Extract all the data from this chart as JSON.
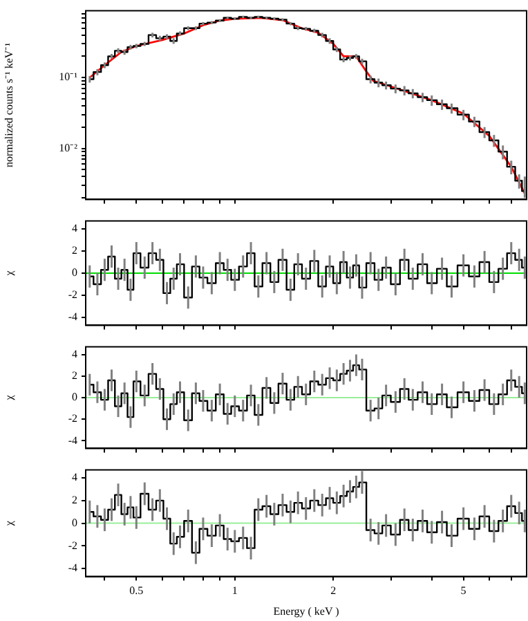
{
  "chart_data": [
    {
      "type": "step",
      "ylabel": "normalized counts s⁻¹ keV⁻¹",
      "log": "xy",
      "xlim": [
        0.35,
        7.8
      ],
      "ylim": [
        0.0019,
        0.88
      ],
      "tick_labels": "y",
      "grid": false,
      "legend": false,
      "marker": "none",
      "xticks": [
        {
          "value": 0.4,
          "label": null
        },
        0.5,
        {
          "value": 0.6,
          "label": null
        },
        {
          "value": 0.7,
          "label": null
        },
        {
          "value": 0.8,
          "label": null
        },
        {
          "value": 0.9,
          "label": null
        },
        1,
        2,
        {
          "value": 3,
          "label": null
        },
        {
          "value": 4,
          "label": null
        },
        5,
        {
          "value": 6,
          "label": null
        },
        {
          "value": 7,
          "label": null
        }
      ],
      "yticks": [
        {
          "value": 0.002,
          "label": null
        },
        {
          "value": 0.003,
          "label": null
        },
        {
          "value": 0.004,
          "label": null
        },
        {
          "value": 0.005,
          "label": null
        },
        {
          "value": 0.006,
          "label": null
        },
        {
          "value": 0.007,
          "label": null
        },
        {
          "value": 0.008,
          "label": null
        },
        {
          "value": 0.009,
          "label": null
        },
        {
          "value": 0.01,
          "label": "10⁻²"
        },
        {
          "value": 0.02,
          "label": null
        },
        {
          "value": 0.03,
          "label": null
        },
        {
          "value": 0.04,
          "label": null
        },
        {
          "value": 0.05,
          "label": null
        },
        {
          "value": 0.06,
          "label": null
        },
        {
          "value": 0.07,
          "label": null
        },
        {
          "value": 0.08,
          "label": null
        },
        {
          "value": 0.09,
          "label": null
        },
        {
          "value": 0.1,
          "label": "10⁻¹"
        },
        {
          "value": 0.2,
          "label": null
        },
        {
          "value": 0.3,
          "label": null
        },
        {
          "value": 0.4,
          "label": null
        },
        {
          "value": 0.5,
          "label": null
        },
        {
          "value": 0.6,
          "label": null
        },
        {
          "value": 0.7,
          "label": null
        },
        {
          "value": 0.8,
          "label": null
        }
      ],
      "x": [
        0.36,
        0.38,
        0.4,
        0.42,
        0.44,
        0.46,
        0.48,
        0.5,
        0.53,
        0.56,
        0.59,
        0.62,
        0.65,
        0.68,
        0.72,
        0.76,
        0.8,
        0.85,
        0.9,
        0.95,
        1,
        1.06,
        1.12,
        1.18,
        1.25,
        1.32,
        1.4,
        1.48,
        1.56,
        1.65,
        1.75,
        1.85,
        1.95,
        2.05,
        2.15,
        2.25,
        2.35,
        2.45,
        2.6,
        2.75,
        2.9,
        3.1,
        3.3,
        3.5,
        3.75,
        4,
        4.3,
        4.6,
        5,
        5.4,
        5.8,
        6.2,
        6.6,
        7,
        7.4,
        7.7
      ],
      "series": [
        {
          "color": "#000000",
          "values": [
            0.095,
            0.12,
            0.15,
            0.2,
            0.24,
            0.23,
            0.27,
            0.28,
            0.3,
            0.4,
            0.36,
            0.38,
            0.33,
            0.42,
            0.5,
            0.5,
            0.58,
            0.6,
            0.64,
            0.7,
            0.68,
            0.72,
            0.7,
            0.72,
            0.7,
            0.68,
            0.66,
            0.58,
            0.5,
            0.49,
            0.46,
            0.4,
            0.33,
            0.25,
            0.18,
            0.19,
            0.2,
            0.17,
            0.095,
            0.085,
            0.078,
            0.07,
            0.066,
            0.06,
            0.053,
            0.048,
            0.042,
            0.037,
            0.03,
            0.024,
            0.017,
            0.013,
            0.009,
            0.0055,
            0.0035,
            0.0025
          ],
          "errors": [
            0.01,
            0.012,
            0.014,
            0.016,
            0.02,
            0.02,
            0.02,
            0.02,
            0.02,
            0.03,
            0.03,
            0.03,
            0.03,
            0.03,
            0.03,
            0.03,
            0.03,
            0.03,
            0.03,
            0.03,
            0.03,
            0.03,
            0.03,
            0.03,
            0.03,
            0.03,
            0.03,
            0.03,
            0.03,
            0.03,
            0.03,
            0.03,
            0.03,
            0.02,
            0.015,
            0.015,
            0.015,
            0.015,
            0.012,
            0.012,
            0.01,
            0.01,
            0.01,
            0.009,
            0.008,
            0.008,
            0.007,
            0.006,
            0.005,
            0.004,
            0.003,
            0.0025,
            0.002,
            0.0012,
            0.0008,
            [
              0.002,
              0.004
            ]
          ]
        },
        {
          "type": "line",
          "color": "#ff0000",
          "x": [
            0.36,
            0.4,
            0.45,
            0.5,
            0.6,
            0.7,
            0.8,
            0.9,
            1,
            1.2,
            1.4,
            1.6,
            1.8,
            2,
            2.15,
            2.35,
            2.5,
            2.65,
            3,
            4,
            5,
            6,
            7,
            7.7
          ],
          "values": [
            0.1,
            0.15,
            0.23,
            0.28,
            0.34,
            0.42,
            0.55,
            0.64,
            0.68,
            0.7,
            0.65,
            0.5,
            0.43,
            0.3,
            0.2,
            0.2,
            0.13,
            0.09,
            0.075,
            0.048,
            0.031,
            0.015,
            0.0055,
            0.0023
          ]
        }
      ]
    },
    {
      "type": "step",
      "ylabel": "χ",
      "log": "x",
      "xlim": [
        0.35,
        7.8
      ],
      "ylim": [
        -4.7,
        4.7
      ],
      "tick_labels": "y",
      "grid": false,
      "legend": false,
      "marker": "none",
      "xticks": [
        {
          "value": 0.4,
          "label": null
        },
        0.5,
        {
          "value": 0.6,
          "label": null
        },
        {
          "value": 0.7,
          "label": null
        },
        {
          "value": 0.8,
          "label": null
        },
        {
          "value": 0.9,
          "label": null
        },
        1,
        2,
        {
          "value": 3,
          "label": null
        },
        {
          "value": 4,
          "label": null
        },
        5,
        {
          "value": 6,
          "label": null
        },
        {
          "value": 7,
          "label": null
        }
      ],
      "yticks": [
        -4,
        -2,
        0,
        2,
        4
      ],
      "ref_lines": [
        {
          "axis": "y",
          "value": 0,
          "color": "#00dd00"
        }
      ],
      "x": [
        0.36,
        0.38,
        0.4,
        0.42,
        0.44,
        0.46,
        0.48,
        0.5,
        0.53,
        0.56,
        0.59,
        0.62,
        0.65,
        0.68,
        0.72,
        0.76,
        0.8,
        0.85,
        0.9,
        0.95,
        1,
        1.06,
        1.12,
        1.18,
        1.25,
        1.32,
        1.4,
        1.48,
        1.56,
        1.65,
        1.75,
        1.85,
        1.95,
        2.05,
        2.15,
        2.25,
        2.35,
        2.45,
        2.6,
        2.75,
        2.9,
        3.1,
        3.3,
        3.5,
        3.75,
        4,
        4.3,
        4.6,
        5,
        5.4,
        5.8,
        6.2,
        6.6,
        7,
        7.4,
        7.7
      ],
      "series": [
        {
          "color": "#000000",
          "values": [
            -0.3,
            -1,
            0.3,
            1.5,
            -0.5,
            0.3,
            -1.5,
            1.8,
            0.5,
            1.8,
            1.2,
            -1.8,
            -0.5,
            0.8,
            -2.2,
            0.6,
            -0.4,
            -0.9,
            0.9,
            0.3,
            -0.6,
            0.6,
            1.8,
            -1.2,
            0.9,
            -0.8,
            1.2,
            -1.5,
            0.8,
            -0.5,
            1.1,
            -1.2,
            0.6,
            -0.9,
            1.0,
            -0.4,
            0.7,
            -1.3,
            0.9,
            -0.6,
            0.5,
            -1.0,
            1.2,
            -0.5,
            0.8,
            -0.9,
            0.4,
            -1.2,
            0.7,
            -0.3,
            1.0,
            -0.8,
            0.4,
            1.8,
            1.2,
            0.5
          ],
          "errors": [
            1,
            1,
            1,
            1,
            1,
            1,
            1,
            1,
            1,
            1,
            1,
            1,
            1,
            1,
            1,
            1,
            1,
            1,
            1,
            1,
            1,
            1,
            1,
            1,
            1,
            1,
            1,
            1,
            1,
            1,
            1,
            1,
            1,
            1,
            1,
            1,
            1,
            1,
            1,
            1,
            1,
            1,
            1,
            1,
            1,
            1,
            1,
            1,
            1,
            1,
            1,
            1,
            1,
            1,
            1,
            1
          ]
        }
      ]
    },
    {
      "type": "step",
      "ylabel": "χ",
      "log": "x",
      "xlim": [
        0.35,
        7.8
      ],
      "ylim": [
        -4.7,
        4.7
      ],
      "tick_labels": "y",
      "grid": false,
      "legend": false,
      "marker": "none",
      "xticks": [
        {
          "value": 0.4,
          "label": null
        },
        0.5,
        {
          "value": 0.6,
          "label": null
        },
        {
          "value": 0.7,
          "label": null
        },
        {
          "value": 0.8,
          "label": null
        },
        {
          "value": 0.9,
          "label": null
        },
        1,
        2,
        {
          "value": 3,
          "label": null
        },
        {
          "value": 4,
          "label": null
        },
        5,
        {
          "value": 6,
          "label": null
        },
        {
          "value": 7,
          "label": null
        }
      ],
      "yticks": [
        -4,
        -2,
        0,
        2,
        4
      ],
      "ref_lines": [
        {
          "axis": "y",
          "value": 0,
          "color": "#99ee99"
        }
      ],
      "x": [
        0.36,
        0.38,
        0.4,
        0.42,
        0.44,
        0.46,
        0.48,
        0.5,
        0.53,
        0.56,
        0.59,
        0.62,
        0.65,
        0.68,
        0.72,
        0.76,
        0.8,
        0.85,
        0.9,
        0.95,
        1,
        1.06,
        1.12,
        1.18,
        1.25,
        1.32,
        1.4,
        1.48,
        1.56,
        1.65,
        1.75,
        1.85,
        1.95,
        2.05,
        2.15,
        2.25,
        2.35,
        2.45,
        2.6,
        2.75,
        2.9,
        3.1,
        3.3,
        3.5,
        3.75,
        4,
        4.3,
        4.6,
        5,
        5.4,
        5.8,
        6.2,
        6.6,
        7,
        7.4,
        7.7
      ],
      "series": [
        {
          "color": "#000000",
          "values": [
            1.2,
            0.5,
            -0.2,
            1.6,
            -0.8,
            0.4,
            -1.8,
            1.5,
            0.2,
            2.2,
            0.8,
            -2,
            -0.6,
            0.5,
            -2.1,
            0.4,
            -0.3,
            -1.2,
            0.3,
            -1.5,
            -0.8,
            -1.2,
            0.2,
            -1.6,
            0.9,
            -0.5,
            1.3,
            -0.2,
            1.0,
            0.3,
            1.5,
            1.2,
            1.8,
            1.6,
            2.2,
            2.5,
            3.0,
            2.6,
            -1.2,
            -1.0,
            0.2,
            -0.4,
            0.8,
            -0.2,
            0.5,
            -0.6,
            0.3,
            -0.9,
            0.5,
            -0.3,
            0.7,
            -0.6,
            0.3,
            1.6,
            1.0,
            0.4
          ],
          "errors": [
            1,
            1,
            1,
            1,
            1,
            1,
            1,
            1,
            1,
            1,
            1,
            1,
            1,
            1,
            1,
            1,
            1,
            1,
            1,
            1,
            1,
            1,
            1,
            1,
            1,
            1,
            1,
            1,
            1,
            1,
            1,
            1,
            1,
            1,
            1,
            1,
            1,
            1,
            1,
            1,
            1,
            1,
            1,
            1,
            1,
            1,
            1,
            1,
            1,
            1,
            1,
            1,
            1,
            1,
            1,
            1
          ]
        }
      ]
    },
    {
      "type": "step",
      "ylabel": "χ",
      "xlabel": "Energy ( keV )",
      "log": "x",
      "xlim": [
        0.35,
        7.8
      ],
      "ylim": [
        -4.7,
        4.7
      ],
      "grid": false,
      "legend": false,
      "marker": "none",
      "xticks": [
        {
          "value": 0.4,
          "label": null
        },
        0.5,
        {
          "value": 0.6,
          "label": null
        },
        {
          "value": 0.7,
          "label": null
        },
        {
          "value": 0.8,
          "label": null
        },
        {
          "value": 0.9,
          "label": null
        },
        1,
        2,
        {
          "value": 3,
          "label": null
        },
        {
          "value": 4,
          "label": null
        },
        5,
        {
          "value": 6,
          "label": null
        },
        {
          "value": 7,
          "label": null
        }
      ],
      "yticks": [
        -4,
        -2,
        0,
        2,
        4
      ],
      "ref_lines": [
        {
          "axis": "y",
          "value": 0,
          "color": "#99ee99"
        }
      ],
      "x": [
        0.36,
        0.38,
        0.4,
        0.42,
        0.44,
        0.46,
        0.48,
        0.5,
        0.53,
        0.56,
        0.59,
        0.62,
        0.65,
        0.68,
        0.72,
        0.76,
        0.8,
        0.85,
        0.9,
        0.95,
        1,
        1.06,
        1.12,
        1.18,
        1.25,
        1.32,
        1.4,
        1.48,
        1.56,
        1.65,
        1.75,
        1.85,
        1.95,
        2.05,
        2.15,
        2.25,
        2.35,
        2.45,
        2.6,
        2.75,
        2.9,
        3.1,
        3.3,
        3.5,
        3.75,
        4,
        4.3,
        4.6,
        5,
        5.4,
        5.8,
        6.2,
        6.6,
        7,
        7.4,
        7.7
      ],
      "series": [
        {
          "color": "#000000",
          "values": [
            1,
            0.6,
            0.3,
            1.2,
            2.5,
            0.8,
            1.4,
            0.5,
            2.6,
            1.2,
            2,
            0.4,
            -1.8,
            -1.2,
            0.2,
            -2.6,
            -0.5,
            -1.1,
            -0.2,
            -1.4,
            -1.6,
            -1.3,
            -2.2,
            1.2,
            1.5,
            0.8,
            1.6,
            1.0,
            1.8,
            1.3,
            2.0,
            1.6,
            2.2,
            1.8,
            2.4,
            2.8,
            3.2,
            3.6,
            -0.6,
            -0.9,
            -0.2,
            -1.0,
            0.3,
            -0.6,
            0.2,
            -0.8,
            0.1,
            -1.1,
            0.4,
            -0.5,
            0.6,
            -0.7,
            0.2,
            1.5,
            0.9,
            0.2
          ],
          "errors": [
            1,
            1,
            1,
            1,
            1,
            1,
            1,
            1,
            1,
            1,
            1,
            1,
            1,
            1,
            1,
            1,
            1,
            1,
            1,
            1,
            1,
            1,
            1,
            1,
            1,
            1,
            1,
            1,
            1,
            1,
            1,
            1,
            1,
            1,
            1,
            1,
            1,
            1,
            1,
            1,
            1,
            1,
            1,
            1,
            1,
            1,
            1,
            1,
            1,
            1,
            1,
            1,
            1,
            1,
            1,
            1
          ]
        }
      ]
    }
  ]
}
